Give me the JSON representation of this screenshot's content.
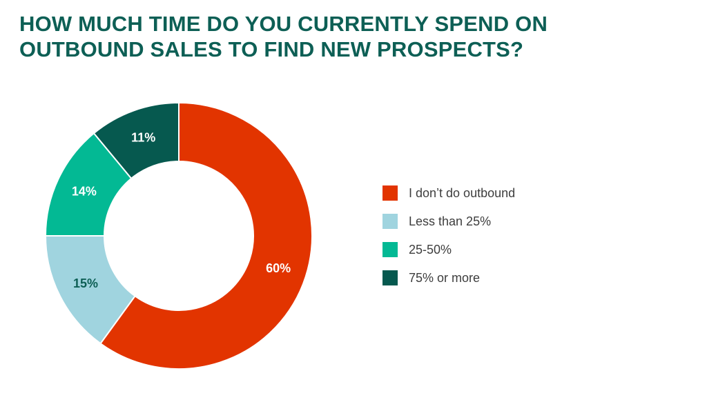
{
  "title_lines": {
    "line1": "HOW MUCH TIME DO YOU CURRENTLY SPEND ON",
    "line2": "OUTBOUND SALES TO FIND NEW PROSPECTS?"
  },
  "title_color": "#0d5f55",
  "legend_text_color": "#3d3d3d",
  "chart_data": {
    "type": "pie",
    "subtype": "donut",
    "title": "HOW MUCH TIME DO YOU CURRENTLY SPEND ON OUTBOUND SALES TO FIND NEW PROSPECTS?",
    "categories": [
      "I don’t do outbound",
      "Less than 25%",
      "25-50%",
      "75% or more"
    ],
    "values": [
      60,
      15,
      14,
      11
    ],
    "value_labels": [
      "60%",
      "15%",
      "14%",
      "11%"
    ],
    "colors": [
      "#e23400",
      "#a0d4df",
      "#03b994",
      "#06594f"
    ],
    "label_colors": [
      "#ffffff",
      "#0d5f55",
      "#ffffff",
      "#ffffff"
    ],
    "start_angle_deg": 0,
    "direction": "clockwise",
    "inner_radius_ratio": 0.56,
    "separator_color": "#ffffff",
    "legend_position": "right",
    "grid": false
  },
  "legend": {
    "items": [
      {
        "label": "I don’t do outbound",
        "color": "#e23400"
      },
      {
        "label": "Less than 25%",
        "color": "#a0d4df"
      },
      {
        "label": "25-50%",
        "color": "#03b994"
      },
      {
        "label": "75% or more",
        "color": "#06594f"
      }
    ]
  }
}
